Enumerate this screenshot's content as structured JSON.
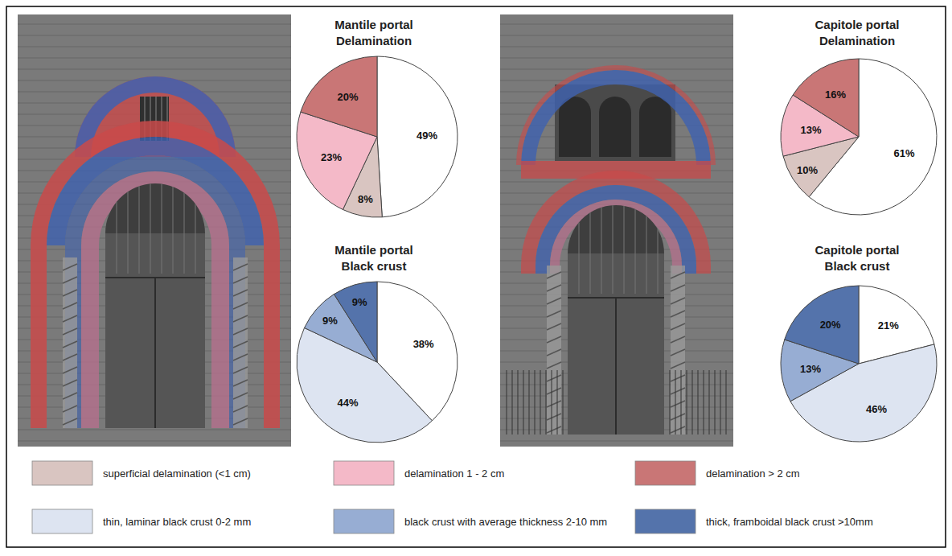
{
  "chart_data": [
    {
      "type": "pie",
      "title": "Mantile portal",
      "subtitle": "Delamination",
      "values": [
        49,
        8,
        23,
        20
      ],
      "value_labels": [
        "49%",
        "8%",
        "23%",
        "20%"
      ],
      "colors": [
        "#ffffff",
        "#d9c5c1",
        "#f4b9c8",
        "#c97676"
      ],
      "data_labels": true
    },
    {
      "type": "pie",
      "title": "Mantile portal",
      "subtitle": "Black crust",
      "values": [
        38,
        44,
        9,
        9
      ],
      "value_labels": [
        "38%",
        "44%",
        "9%",
        "9%"
      ],
      "colors": [
        "#ffffff",
        "#dde4f1",
        "#97add3",
        "#5473ab"
      ],
      "data_labels": true
    },
    {
      "type": "pie",
      "title": "Capitole portal",
      "subtitle": "Delamination",
      "values": [
        61,
        10,
        13,
        16
      ],
      "value_labels": [
        "61%",
        "10%",
        "13%",
        "16%"
      ],
      "colors": [
        "#ffffff",
        "#d9c5c1",
        "#f4b9c8",
        "#c97676"
      ],
      "data_labels": true
    },
    {
      "type": "pie",
      "title": "Capitole portal",
      "subtitle": "Black crust",
      "values": [
        21,
        46,
        13,
        20
      ],
      "value_labels": [
        "21%",
        "46%",
        "13%",
        "20%"
      ],
      "colors": [
        "#ffffff",
        "#dde4f1",
        "#97add3",
        "#5473ab"
      ],
      "data_labels": true
    }
  ],
  "legend_entries": [
    {
      "label": "superficial delamination  (<1 cm)",
      "color": "#d9c5c1"
    },
    {
      "label": "delamination 1 - 2 cm",
      "color": "#f4b9c8"
    },
    {
      "label": "delamination > 2 cm",
      "color": "#c97676"
    },
    {
      "label": "thin, laminar black crust 0-2 mm",
      "color": "#dde4f1"
    },
    {
      "label": "black crust with average thickness 2-10 mm",
      "color": "#97add3"
    },
    {
      "label": "thick, framboidal black crust >10mm",
      "color": "#5473ab"
    }
  ]
}
